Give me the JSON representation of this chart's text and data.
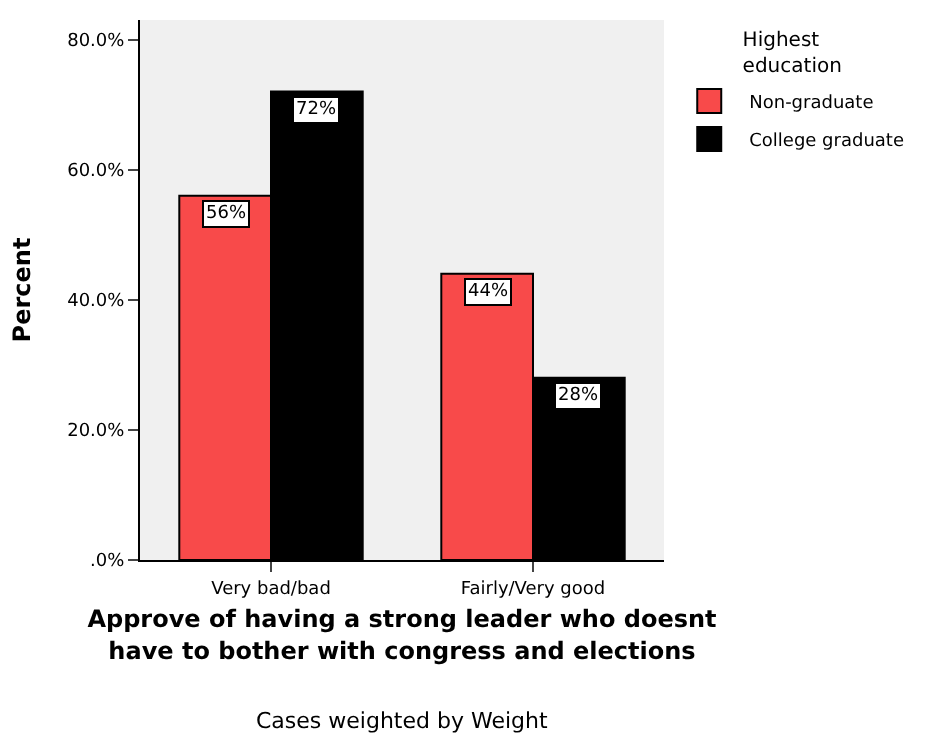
{
  "chart_data": {
    "type": "bar",
    "xlabel": "Approve of having a strong leader who doesnt\nhave to bother with congress and elections",
    "ylabel": "Percent",
    "legend_title": "Highest\neducation",
    "legend": "top right",
    "grid": false,
    "categories": [
      "Very bad/bad",
      "Fairly/Very good"
    ],
    "series": [
      {
        "name": "Non-graduate",
        "color": "#f84a4a",
        "values": [
          56,
          44
        ],
        "value_labels": [
          "56%",
          "44%"
        ]
      },
      {
        "name": "College graduate",
        "color": "#000000",
        "values": [
          72,
          28
        ],
        "value_labels": [
          "72%",
          "28%"
        ]
      }
    ],
    "ylim": [
      0,
      83
    ],
    "yticks": [
      {
        "value": 0,
        "label": ".0%"
      },
      {
        "value": 20,
        "label": "20.0%"
      },
      {
        "value": 40,
        "label": "40.0%"
      },
      {
        "value": 60,
        "label": "60.0%"
      },
      {
        "value": 80,
        "label": "80.0%"
      }
    ],
    "annotations": [
      "Cases weighted by Weight"
    ]
  }
}
